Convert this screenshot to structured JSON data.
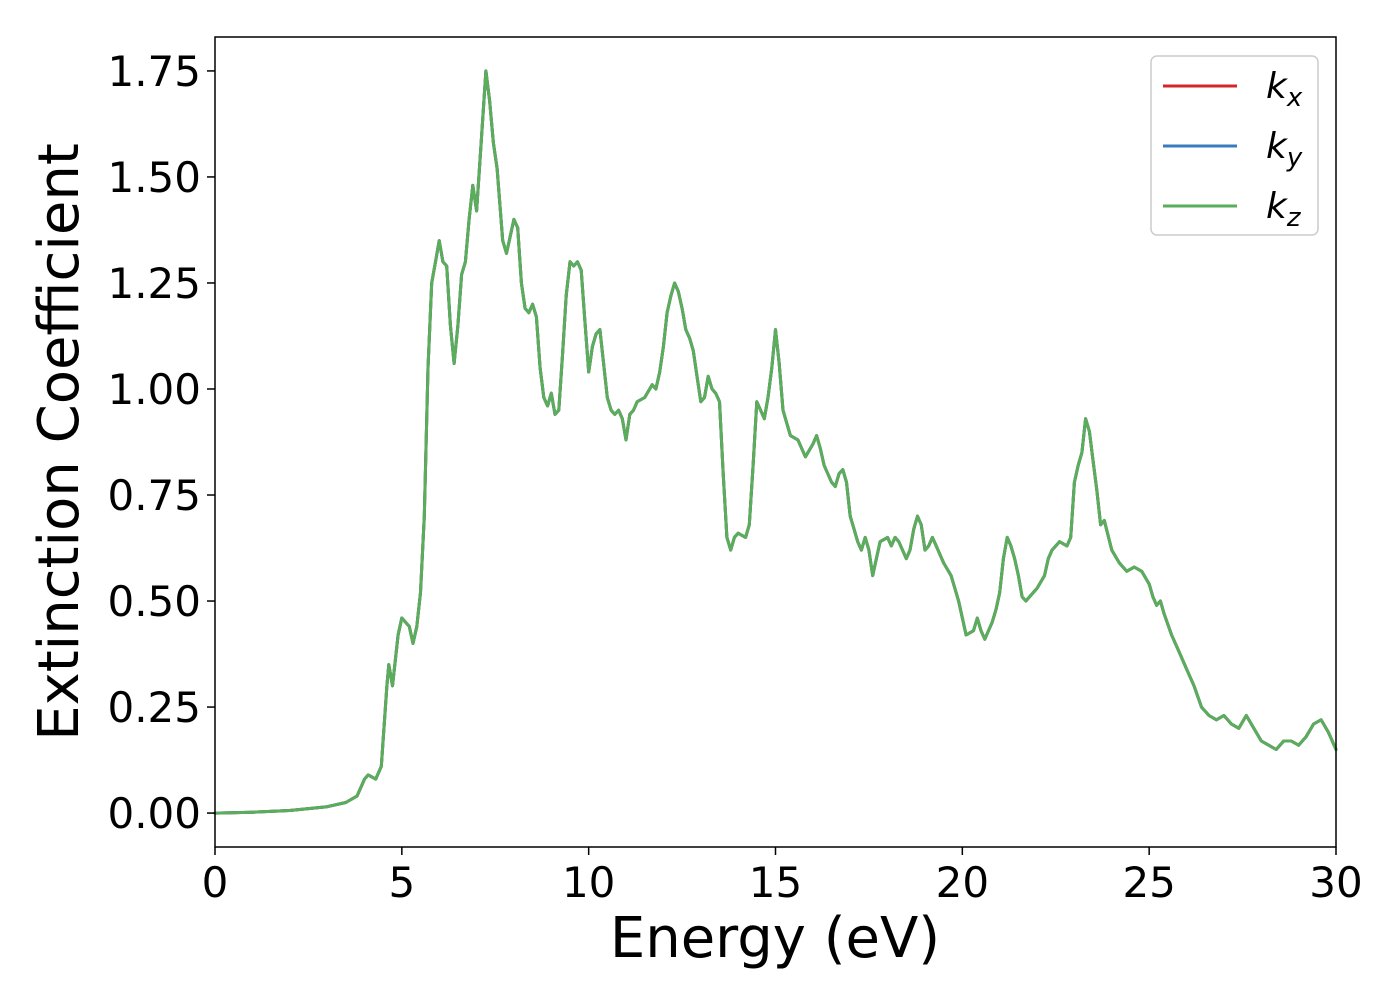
{
  "chart_data": {
    "type": "line",
    "title": "",
    "xlabel": "Energy (eV)",
    "ylabel": "Extinction Coefficient",
    "xlim": [
      0,
      30
    ],
    "ylim": [
      -0.08,
      1.83
    ],
    "xticks": [
      0,
      5,
      10,
      15,
      20,
      25,
      30
    ],
    "xtick_labels": [
      "0",
      "5",
      "10",
      "15",
      "20",
      "25",
      "30"
    ],
    "yticks": [
      0.0,
      0.25,
      0.5,
      0.75,
      1.0,
      1.25,
      1.5,
      1.75
    ],
    "ytick_labels": [
      "0.00",
      "0.25",
      "0.50",
      "0.75",
      "1.00",
      "1.25",
      "1.50",
      "1.75"
    ],
    "grid": false,
    "legend_position": "top-right",
    "series": [
      {
        "name": "k_x",
        "legend_base": "k",
        "legend_sub": "x",
        "color": "#d62728",
        "points": [
          [
            0,
            0.0
          ],
          [
            1,
            0.002
          ],
          [
            2,
            0.006
          ],
          [
            3,
            0.015
          ],
          [
            3.5,
            0.025
          ],
          [
            3.8,
            0.04
          ],
          [
            4.0,
            0.08
          ],
          [
            4.1,
            0.09
          ],
          [
            4.3,
            0.08
          ],
          [
            4.45,
            0.11
          ],
          [
            4.6,
            0.3
          ],
          [
            4.65,
            0.35
          ],
          [
            4.75,
            0.3
          ],
          [
            4.9,
            0.42
          ],
          [
            5.0,
            0.46
          ],
          [
            5.2,
            0.44
          ],
          [
            5.3,
            0.4
          ],
          [
            5.4,
            0.44
          ],
          [
            5.5,
            0.52
          ],
          [
            5.6,
            0.7
          ],
          [
            5.7,
            1.05
          ],
          [
            5.8,
            1.25
          ],
          [
            5.9,
            1.3
          ],
          [
            6.0,
            1.35
          ],
          [
            6.1,
            1.3
          ],
          [
            6.2,
            1.29
          ],
          [
            6.3,
            1.15
          ],
          [
            6.4,
            1.06
          ],
          [
            6.5,
            1.15
          ],
          [
            6.6,
            1.27
          ],
          [
            6.7,
            1.3
          ],
          [
            6.8,
            1.4
          ],
          [
            6.9,
            1.48
          ],
          [
            7.0,
            1.42
          ],
          [
            7.1,
            1.55
          ],
          [
            7.25,
            1.75
          ],
          [
            7.35,
            1.68
          ],
          [
            7.45,
            1.58
          ],
          [
            7.55,
            1.52
          ],
          [
            7.7,
            1.35
          ],
          [
            7.8,
            1.32
          ],
          [
            8.0,
            1.4
          ],
          [
            8.1,
            1.38
          ],
          [
            8.2,
            1.25
          ],
          [
            8.3,
            1.19
          ],
          [
            8.4,
            1.18
          ],
          [
            8.5,
            1.2
          ],
          [
            8.6,
            1.17
          ],
          [
            8.7,
            1.05
          ],
          [
            8.8,
            0.98
          ],
          [
            8.9,
            0.96
          ],
          [
            9.0,
            0.99
          ],
          [
            9.1,
            0.94
          ],
          [
            9.2,
            0.95
          ],
          [
            9.3,
            1.08
          ],
          [
            9.4,
            1.22
          ],
          [
            9.5,
            1.3
          ],
          [
            9.6,
            1.29
          ],
          [
            9.7,
            1.3
          ],
          [
            9.8,
            1.28
          ],
          [
            9.9,
            1.16
          ],
          [
            10.0,
            1.04
          ],
          [
            10.1,
            1.1
          ],
          [
            10.2,
            1.13
          ],
          [
            10.3,
            1.14
          ],
          [
            10.4,
            1.06
          ],
          [
            10.5,
            0.98
          ],
          [
            10.6,
            0.95
          ],
          [
            10.7,
            0.94
          ],
          [
            10.8,
            0.95
          ],
          [
            10.9,
            0.93
          ],
          [
            11.0,
            0.88
          ],
          [
            11.1,
            0.94
          ],
          [
            11.2,
            0.95
          ],
          [
            11.3,
            0.97
          ],
          [
            11.5,
            0.98
          ],
          [
            11.7,
            1.01
          ],
          [
            11.8,
            1.0
          ],
          [
            11.9,
            1.04
          ],
          [
            12.0,
            1.1
          ],
          [
            12.1,
            1.18
          ],
          [
            12.2,
            1.22
          ],
          [
            12.3,
            1.25
          ],
          [
            12.4,
            1.23
          ],
          [
            12.5,
            1.19
          ],
          [
            12.6,
            1.14
          ],
          [
            12.7,
            1.12
          ],
          [
            12.8,
            1.09
          ],
          [
            12.9,
            1.03
          ],
          [
            13.0,
            0.97
          ],
          [
            13.1,
            0.98
          ],
          [
            13.2,
            1.03
          ],
          [
            13.3,
            1.0
          ],
          [
            13.4,
            0.99
          ],
          [
            13.5,
            0.97
          ],
          [
            13.6,
            0.8
          ],
          [
            13.7,
            0.65
          ],
          [
            13.8,
            0.62
          ],
          [
            13.9,
            0.65
          ],
          [
            14.0,
            0.66
          ],
          [
            14.2,
            0.65
          ],
          [
            14.3,
            0.68
          ],
          [
            14.4,
            0.82
          ],
          [
            14.5,
            0.97
          ],
          [
            14.6,
            0.95
          ],
          [
            14.7,
            0.93
          ],
          [
            14.8,
            0.98
          ],
          [
            14.9,
            1.05
          ],
          [
            15.0,
            1.14
          ],
          [
            15.1,
            1.06
          ],
          [
            15.2,
            0.95
          ],
          [
            15.3,
            0.92
          ],
          [
            15.4,
            0.89
          ],
          [
            15.6,
            0.88
          ],
          [
            15.8,
            0.84
          ],
          [
            16.0,
            0.87
          ],
          [
            16.1,
            0.89
          ],
          [
            16.2,
            0.86
          ],
          [
            16.3,
            0.82
          ],
          [
            16.5,
            0.78
          ],
          [
            16.6,
            0.77
          ],
          [
            16.7,
            0.8
          ],
          [
            16.8,
            0.81
          ],
          [
            16.9,
            0.78
          ],
          [
            17.0,
            0.7
          ],
          [
            17.1,
            0.67
          ],
          [
            17.2,
            0.64
          ],
          [
            17.3,
            0.62
          ],
          [
            17.4,
            0.65
          ],
          [
            17.5,
            0.62
          ],
          [
            17.6,
            0.56
          ],
          [
            17.7,
            0.6
          ],
          [
            17.8,
            0.64
          ],
          [
            18.0,
            0.65
          ],
          [
            18.1,
            0.63
          ],
          [
            18.2,
            0.65
          ],
          [
            18.3,
            0.64
          ],
          [
            18.5,
            0.6
          ],
          [
            18.6,
            0.62
          ],
          [
            18.7,
            0.67
          ],
          [
            18.8,
            0.7
          ],
          [
            18.9,
            0.68
          ],
          [
            19.0,
            0.62
          ],
          [
            19.1,
            0.63
          ],
          [
            19.2,
            0.65
          ],
          [
            19.3,
            0.63
          ],
          [
            19.5,
            0.59
          ],
          [
            19.7,
            0.56
          ],
          [
            19.9,
            0.5
          ],
          [
            20.1,
            0.42
          ],
          [
            20.3,
            0.43
          ],
          [
            20.4,
            0.46
          ],
          [
            20.5,
            0.43
          ],
          [
            20.6,
            0.41
          ],
          [
            20.8,
            0.45
          ],
          [
            20.9,
            0.48
          ],
          [
            21.0,
            0.52
          ],
          [
            21.1,
            0.6
          ],
          [
            21.2,
            0.65
          ],
          [
            21.3,
            0.63
          ],
          [
            21.4,
            0.6
          ],
          [
            21.5,
            0.56
          ],
          [
            21.6,
            0.51
          ],
          [
            21.7,
            0.5
          ],
          [
            21.9,
            0.52
          ],
          [
            22.0,
            0.53
          ],
          [
            22.2,
            0.56
          ],
          [
            22.3,
            0.6
          ],
          [
            22.4,
            0.62
          ],
          [
            22.6,
            0.64
          ],
          [
            22.8,
            0.63
          ],
          [
            22.9,
            0.65
          ],
          [
            23.0,
            0.78
          ],
          [
            23.1,
            0.82
          ],
          [
            23.2,
            0.85
          ],
          [
            23.3,
            0.93
          ],
          [
            23.4,
            0.9
          ],
          [
            23.5,
            0.83
          ],
          [
            23.6,
            0.76
          ],
          [
            23.7,
            0.68
          ],
          [
            23.8,
            0.69
          ],
          [
            24.0,
            0.62
          ],
          [
            24.2,
            0.59
          ],
          [
            24.4,
            0.57
          ],
          [
            24.6,
            0.58
          ],
          [
            24.8,
            0.57
          ],
          [
            25.0,
            0.54
          ],
          [
            25.1,
            0.51
          ],
          [
            25.2,
            0.49
          ],
          [
            25.3,
            0.5
          ],
          [
            25.4,
            0.47
          ],
          [
            25.6,
            0.42
          ],
          [
            25.8,
            0.38
          ],
          [
            26.0,
            0.34
          ],
          [
            26.2,
            0.3
          ],
          [
            26.4,
            0.25
          ],
          [
            26.6,
            0.23
          ],
          [
            26.8,
            0.22
          ],
          [
            27.0,
            0.23
          ],
          [
            27.2,
            0.21
          ],
          [
            27.4,
            0.2
          ],
          [
            27.6,
            0.23
          ],
          [
            27.8,
            0.2
          ],
          [
            28.0,
            0.17
          ],
          [
            28.2,
            0.16
          ],
          [
            28.4,
            0.15
          ],
          [
            28.6,
            0.17
          ],
          [
            28.8,
            0.17
          ],
          [
            29.0,
            0.16
          ],
          [
            29.2,
            0.18
          ],
          [
            29.4,
            0.21
          ],
          [
            29.6,
            0.22
          ],
          [
            29.8,
            0.19
          ],
          [
            30.0,
            0.15
          ]
        ]
      },
      {
        "name": "k_y",
        "legend_base": "k",
        "legend_sub": "y",
        "color": "#3b7bbf",
        "same_as": 0
      },
      {
        "name": "k_z",
        "legend_base": "k",
        "legend_sub": "z",
        "color": "#5aad5a",
        "same_as": 0
      }
    ]
  }
}
